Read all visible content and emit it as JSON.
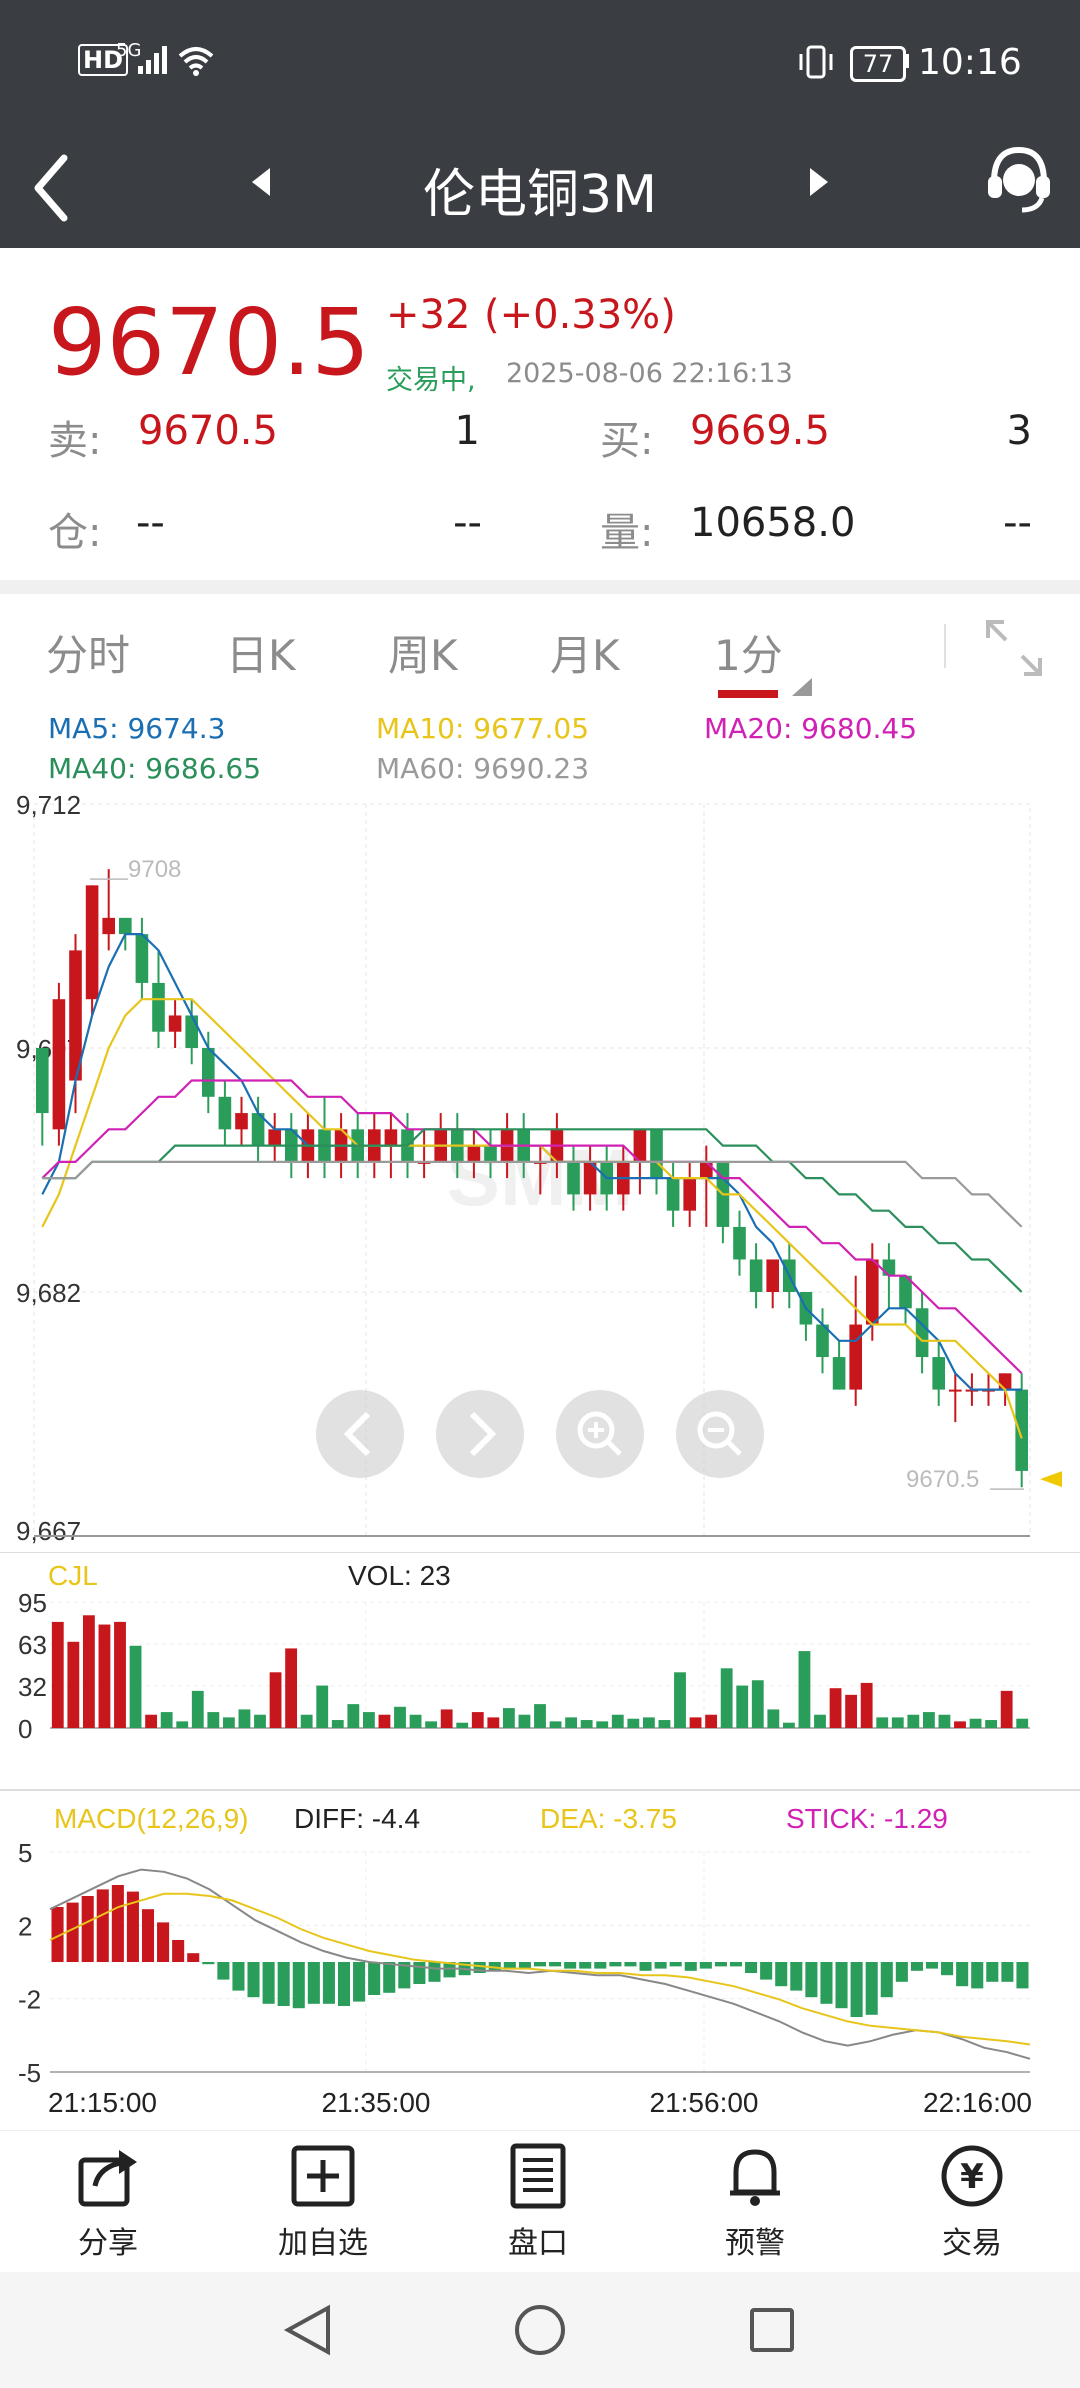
{
  "status_bar": {
    "network": "HD",
    "signal": "5G",
    "battery": "77",
    "time": "10:16"
  },
  "header": {
    "title": "伦电铜3M"
  },
  "quote": {
    "price": "9670.5",
    "change": "+32",
    "change_pct": "(+0.33%)",
    "trading_status": "交易中,",
    "timestamp": "2025-08-06 22:16:13",
    "sell_label": "卖:",
    "sell_price": "9670.5",
    "sell_qty": "1",
    "buy_label": "买:",
    "buy_price": "9669.5",
    "buy_qty": "3",
    "oi_label": "仓:",
    "oi_value": "--",
    "oi_change": "--",
    "volume_label": "量:",
    "volume_value": "10658.0",
    "volume_change": "--"
  },
  "tabs": [
    {
      "label": "分时"
    },
    {
      "label": "日K"
    },
    {
      "label": "周K"
    },
    {
      "label": "月K"
    },
    {
      "label": "1分",
      "active": true
    }
  ],
  "ma_legend": {
    "ma5": "MA5: 9674.3",
    "ma10": "MA10: 9677.05",
    "ma20": "MA20: 9680.45",
    "ma40": "MA40: 9686.65",
    "ma60": "MA60: 9690.23"
  },
  "colors": {
    "up": "#c8161d",
    "down": "#2a9d5a",
    "ma5": "#1a6fb3",
    "ma10": "#e8c51a",
    "ma20": "#d021b4",
    "ma40": "#2a8f5a",
    "ma60": "#9a9a9a"
  },
  "chart_data": [
    {
      "type": "candlestick",
      "y_ticks": [
        "9,712",
        "9,697",
        "9,682",
        "9,667"
      ],
      "ylim": [
        9667,
        9712
      ],
      "high_label": "9708",
      "last_label": "9670.5",
      "watermark": "SMM",
      "candles": [
        [
          9697,
          9693,
          9695,
          9691
        ],
        [
          9692,
          9700,
          9701,
          9691
        ],
        [
          9695,
          9703,
          9704,
          9693
        ],
        [
          9700,
          9707,
          9707,
          9699
        ],
        [
          9704,
          9705,
          9708,
          9703
        ],
        [
          9705,
          9704,
          9705,
          9703
        ],
        [
          9704,
          9701,
          9705,
          9700
        ],
        [
          9701,
          9698,
          9703,
          9697
        ],
        [
          9698,
          9699,
          9700,
          9697
        ],
        [
          9699,
          9697,
          9700,
          9696
        ],
        [
          9697,
          9694,
          9698,
          9693
        ],
        [
          9694,
          9692,
          9695,
          9691
        ],
        [
          9692,
          9693,
          9694,
          9691
        ],
        [
          9693,
          9691,
          9694,
          9690
        ],
        [
          9691,
          9692,
          9693,
          9690
        ],
        [
          9692,
          9690,
          9693,
          9689
        ],
        [
          9690,
          9692,
          9693,
          9689
        ],
        [
          9692,
          9690,
          9694,
          9689
        ],
        [
          9690,
          9692,
          9693,
          9689
        ],
        [
          9692,
          9690,
          9693,
          9689
        ],
        [
          9690,
          9692,
          9693,
          9689
        ],
        [
          9691,
          9692,
          9693,
          9689
        ],
        [
          9692,
          9690,
          9693,
          9689
        ],
        [
          9690,
          9690,
          9692,
          9689
        ],
        [
          9690,
          9692,
          9693,
          9690
        ],
        [
          9692,
          9690,
          9693,
          9689
        ],
        [
          9690,
          9691,
          9692,
          9689
        ],
        [
          9691,
          9690,
          9692,
          9689
        ],
        [
          9690,
          9692,
          9693,
          9689
        ],
        [
          9692,
          9690,
          9693,
          9689
        ],
        [
          9690,
          9690,
          9691,
          9688
        ],
        [
          9690,
          9692,
          9693,
          9689
        ],
        [
          9690,
          9688,
          9691,
          9687
        ],
        [
          9688,
          9690,
          9691,
          9687
        ],
        [
          9690,
          9688,
          9691,
          9687
        ],
        [
          9688,
          9690,
          9691,
          9687
        ],
        [
          9690,
          9692,
          9692,
          9688
        ],
        [
          9692,
          9689,
          9692,
          9688
        ],
        [
          9689,
          9687,
          9690,
          9686
        ],
        [
          9687,
          9689,
          9690,
          9686
        ],
        [
          9689,
          9690,
          9691,
          9686
        ],
        [
          9690,
          9686,
          9690,
          9685
        ],
        [
          9686,
          9684,
          9687,
          9683
        ],
        [
          9684,
          9682,
          9685,
          9681
        ],
        [
          9682,
          9684,
          9684,
          9681
        ],
        [
          9684,
          9682,
          9685,
          9681
        ],
        [
          9682,
          9680,
          9682,
          9679
        ],
        [
          9680,
          9678,
          9681,
          9677
        ],
        [
          9678,
          9676,
          9679,
          9676
        ],
        [
          9676,
          9680,
          9683,
          9675
        ],
        [
          9680,
          9684,
          9685,
          9679
        ],
        [
          9684,
          9683,
          9685,
          9681
        ],
        [
          9683,
          9681,
          9683,
          9680
        ],
        [
          9681,
          9678,
          9682,
          9677
        ],
        [
          9678,
          9676,
          9679,
          9675
        ],
        [
          9676,
          9676,
          9677,
          9674
        ],
        [
          9676,
          9676,
          9677,
          9675
        ],
        [
          9676,
          9676,
          9677,
          9675
        ],
        [
          9676,
          9677,
          9677,
          9675
        ],
        [
          9676,
          9671,
          9677,
          9670
        ]
      ],
      "series": [
        {
          "name": "MA5",
          "values": [
            9688,
            9690,
            9695,
            9699,
            9702,
            9704,
            9704,
            9703,
            9701,
            9699,
            9697,
            9696,
            9695,
            9693,
            9692,
            9692,
            9691,
            9691,
            9691,
            9691,
            9691,
            9691,
            9691,
            9691,
            9691,
            9691,
            9691,
            9691,
            9691,
            9691,
            9691,
            9690,
            9690,
            9690,
            9689,
            9689,
            9689,
            9689,
            9689,
            9689,
            9689,
            9689,
            9688,
            9686,
            9685,
            9683,
            9681,
            9680,
            9679,
            9679,
            9680,
            9681,
            9681,
            9680,
            9679,
            9677,
            9676,
            9676,
            9676,
            9676
          ]
        },
        {
          "name": "MA10",
          "values": [
            9686,
            9688,
            9691,
            9694,
            9697,
            9699,
            9700,
            9700,
            9700,
            9700,
            9699,
            9698,
            9697,
            9696,
            9695,
            9694,
            9693,
            9692,
            9692,
            9691,
            9691,
            9691,
            9691,
            9691,
            9691,
            9691,
            9691,
            9691,
            9691,
            9691,
            9691,
            9690,
            9690,
            9690,
            9690,
            9690,
            9690,
            9690,
            9689,
            9689,
            9689,
            9688,
            9688,
            9687,
            9686,
            9685,
            9684,
            9683,
            9682,
            9681,
            9680,
            9680,
            9680,
            9679,
            9679,
            9679,
            9678,
            9677,
            9676,
            9673
          ]
        },
        {
          "name": "MA20",
          "values": [
            9689,
            9690,
            9690,
            9691,
            9692,
            9692,
            9693,
            9694,
            9694,
            9695,
            9695,
            9695,
            9695,
            9695,
            9695,
            9695,
            9694,
            9694,
            9694,
            9693,
            9693,
            9693,
            9692,
            9692,
            9692,
            9692,
            9692,
            9691,
            9691,
            9691,
            9691,
            9691,
            9691,
            9691,
            9691,
            9691,
            9690,
            9690,
            9690,
            9690,
            9690,
            9689,
            9689,
            9688,
            9687,
            9686,
            9686,
            9685,
            9685,
            9684,
            9684,
            9683,
            9683,
            9682,
            9681,
            9681,
            9680,
            9679,
            9678,
            9677
          ]
        },
        {
          "name": "MA40",
          "values": [
            9689,
            9689,
            9689,
            9690,
            9690,
            9690,
            9690,
            9690,
            9691,
            9691,
            9691,
            9691,
            9691,
            9691,
            9691,
            9691,
            9691,
            9691,
            9691,
            9691,
            9691,
            9691,
            9691,
            9692,
            9692,
            9692,
            9692,
            9692,
            9692,
            9692,
            9692,
            9692,
            9692,
            9692,
            9692,
            9692,
            9692,
            9692,
            9692,
            9692,
            9692,
            9691,
            9691,
            9691,
            9690,
            9690,
            9689,
            9689,
            9688,
            9688,
            9687,
            9687,
            9686,
            9686,
            9685,
            9685,
            9684,
            9684,
            9683,
            9682
          ]
        },
        {
          "name": "MA60",
          "values": [
            9689,
            9689,
            9689,
            9690,
            9690,
            9690,
            9690,
            9690,
            9690,
            9690,
            9690,
            9690,
            9690,
            9690,
            9690,
            9690,
            9690,
            9690,
            9690,
            9690,
            9690,
            9690,
            9690,
            9690,
            9690,
            9690,
            9690,
            9690,
            9690,
            9690,
            9690,
            9690,
            9690,
            9690,
            9690,
            9690,
            9690,
            9690,
            9690,
            9690,
            9690,
            9690,
            9690,
            9690,
            9690,
            9690,
            9690,
            9690,
            9690,
            9690,
            9690,
            9690,
            9690,
            9689,
            9689,
            9689,
            9688,
            9688,
            9687,
            9686
          ]
        }
      ]
    },
    {
      "type": "bar",
      "title": "CJL",
      "subtitle": "VOL: 23",
      "y_ticks": [
        "95",
        "63",
        "32",
        "0"
      ],
      "ylim": [
        0,
        95
      ],
      "values": [
        80,
        65,
        85,
        78,
        80,
        62,
        10,
        12,
        5,
        28,
        12,
        8,
        14,
        10,
        42,
        60,
        10,
        32,
        6,
        18,
        12,
        10,
        16,
        10,
        5,
        14,
        4,
        12,
        8,
        15,
        10,
        18,
        5,
        8,
        6,
        5,
        10,
        7,
        8,
        6,
        42,
        8,
        10,
        45,
        32,
        36,
        14,
        4,
        58,
        10,
        30,
        25,
        34,
        8,
        8,
        10,
        12,
        10,
        5,
        7,
        6,
        28,
        7
      ],
      "up": [
        true,
        true,
        true,
        true,
        true,
        false,
        true,
        false,
        false,
        false,
        false,
        false,
        false,
        false,
        true,
        true,
        false,
        false,
        false,
        false,
        false,
        true,
        false,
        false,
        false,
        true,
        false,
        true,
        true,
        false,
        false,
        false,
        false,
        false,
        false,
        false,
        false,
        false,
        false,
        false,
        false,
        true,
        true,
        false,
        false,
        false,
        false,
        false,
        false,
        false,
        true,
        true,
        true,
        false,
        false,
        false,
        false,
        false,
        true,
        false,
        false,
        true,
        false
      ]
    },
    {
      "type": "bar",
      "title": "MACD(12,26,9)",
      "diff_label": "DIFF: -4.4",
      "dea_label": "DEA: -3.75",
      "stick_label": "STICK: -1.29",
      "y_ticks": [
        "5",
        "2",
        "-2",
        "-5"
      ],
      "ylim": [
        -5,
        5
      ],
      "x_ticks": [
        "21:15:00",
        "21:35:00",
        "21:56:00",
        "22:16:00"
      ],
      "values": [
        2.5,
        2.7,
        3.0,
        3.3,
        3.5,
        3.2,
        2.4,
        1.8,
        1.0,
        0.4,
        -0.1,
        -0.8,
        -1.3,
        -1.6,
        -1.9,
        -2.0,
        -2.1,
        -1.9,
        -1.9,
        -2.0,
        -1.8,
        -1.5,
        -1.4,
        -1.2,
        -1.0,
        -0.9,
        -0.7,
        -0.6,
        -0.5,
        -0.4,
        -0.3,
        -0.3,
        -0.2,
        -0.2,
        -0.3,
        -0.3,
        -0.3,
        -0.2,
        -0.2,
        -0.4,
        -0.3,
        -0.2,
        -0.4,
        -0.3,
        -0.2,
        -0.2,
        -0.5,
        -0.8,
        -1.1,
        -1.3,
        -1.6,
        -1.9,
        -2.1,
        -2.5,
        -2.4,
        -1.6,
        -0.9,
        -0.4,
        -0.3,
        -0.6,
        -1.1,
        -1.2,
        -0.9,
        -0.9,
        -1.2
      ],
      "series": [
        {
          "name": "DIFF",
          "values": [
            2.4,
            2.9,
            3.4,
            3.9,
            4.2,
            4.1,
            3.8,
            3.3,
            2.6,
            1.9,
            1.4,
            0.9,
            0.5,
            0.2,
            0.0,
            -0.1,
            -0.2,
            -0.3,
            -0.3,
            -0.4,
            -0.4,
            -0.5,
            -0.4,
            -0.5,
            -0.6,
            -0.6,
            -0.8,
            -1.0,
            -1.3,
            -1.6,
            -1.9,
            -2.3,
            -2.7,
            -3.2,
            -3.6,
            -3.8,
            -3.6,
            -3.3,
            -3.1,
            -3.2,
            -3.5,
            -3.9,
            -4.1,
            -4.4
          ]
        },
        {
          "name": "DEA",
          "values": [
            1.0,
            1.5,
            2.0,
            2.5,
            2.8,
            3.1,
            3.1,
            3.0,
            2.8,
            2.4,
            2.0,
            1.5,
            1.1,
            0.8,
            0.5,
            0.3,
            0.1,
            0.0,
            -0.1,
            -0.2,
            -0.3,
            -0.3,
            -0.4,
            -0.4,
            -0.5,
            -0.5,
            -0.6,
            -0.6,
            -0.7,
            -0.9,
            -1.1,
            -1.4,
            -1.7,
            -2.1,
            -2.4,
            -2.7,
            -2.9,
            -3.0,
            -3.1,
            -3.2,
            -3.4,
            -3.5,
            -3.6,
            -3.75
          ]
        }
      ]
    }
  ],
  "bottom_bar": {
    "share": "分享",
    "add_watchlist": "加自选",
    "market": "盘口",
    "alert": "预警",
    "trade": "交易"
  }
}
